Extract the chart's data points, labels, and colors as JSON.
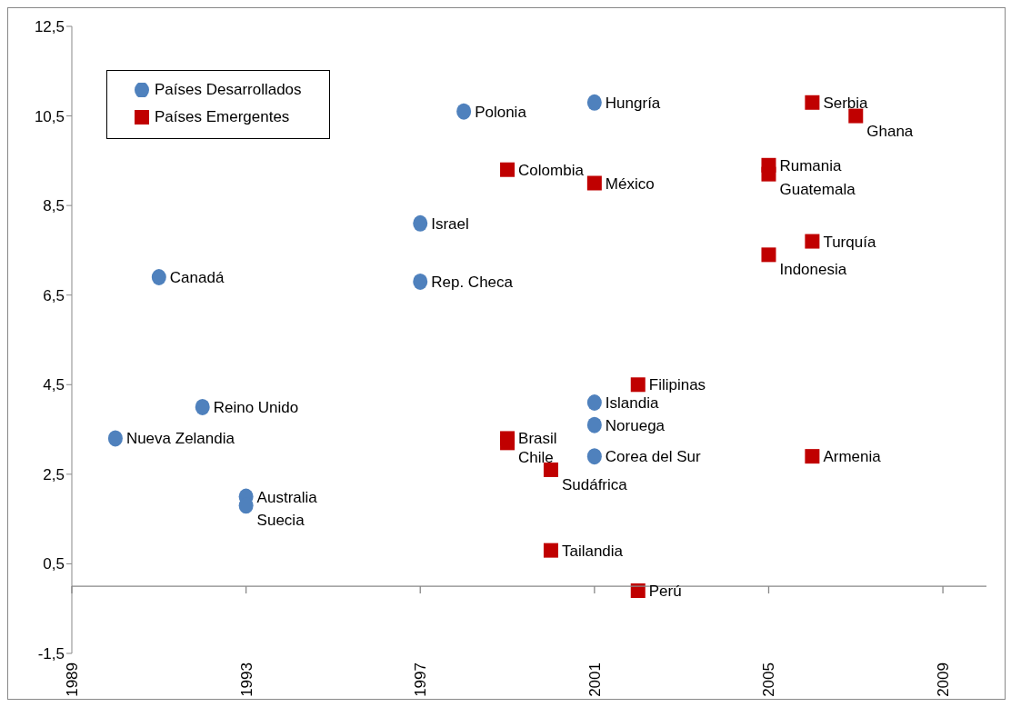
{
  "chart_data": {
    "type": "scatter",
    "xlim": [
      1989,
      2010
    ],
    "xticks": [
      1989,
      1993,
      1997,
      2001,
      2005,
      2009
    ],
    "ylim": [
      -1.5,
      12.5
    ],
    "yticks": [
      {
        "value": -1.5,
        "label": "-1,5"
      },
      {
        "value": 0.5,
        "label": "0,5"
      },
      {
        "value": 2.5,
        "label": "2,5"
      },
      {
        "value": 4.5,
        "label": "4,5"
      },
      {
        "value": 6.5,
        "label": "6,5"
      },
      {
        "value": 8.5,
        "label": "8,5"
      },
      {
        "value": 10.5,
        "label": "10,5"
      },
      {
        "value": 12.5,
        "label": "12,5"
      }
    ],
    "grid": false,
    "legend": "top left",
    "series": [
      {
        "name": "Países Desarrollados",
        "color": "#4f81bd",
        "marker": "circle",
        "x": [
          1990,
          1991,
          1992,
          1993,
          1993,
          1997,
          1997,
          1998,
          2001,
          2001,
          2001,
          2001
        ],
        "values": [
          3.3,
          6.9,
          4.0,
          2.0,
          1.8,
          8.1,
          6.8,
          10.6,
          10.8,
          4.1,
          3.6,
          2.9
        ]
      },
      {
        "name": "Países Emergentes",
        "color": "#c00000",
        "marker": "square",
        "x": [
          2006,
          2007,
          1999,
          2001,
          2005,
          2005,
          2006,
          2005,
          2002,
          1999,
          1999,
          2000,
          2000,
          2002,
          2006
        ],
        "values": [
          10.8,
          10.5,
          9.3,
          9.0,
          9.4,
          9.2,
          7.7,
          7.4,
          4.5,
          3.3,
          3.2,
          2.6,
          0.8,
          -0.1,
          2.9
        ]
      }
    ],
    "annotations": [
      {
        "text": "Nueva Zelandia",
        "x": 1990,
        "y": 3.3
      },
      {
        "text": "Canadá",
        "x": 1991,
        "y": 6.9
      },
      {
        "text": "Reino Unido",
        "x": 1992,
        "y": 4.0
      },
      {
        "text": "Australia",
        "x": 1993,
        "y": 2.0
      },
      {
        "text": "Suecia",
        "x": 1993,
        "y": 1.8
      },
      {
        "text": "Israel",
        "x": 1997,
        "y": 8.1
      },
      {
        "text": "Rep. Checa",
        "x": 1997,
        "y": 6.8
      },
      {
        "text": "Polonia",
        "x": 1998,
        "y": 10.6
      },
      {
        "text": "Hungría",
        "x": 2001,
        "y": 10.8
      },
      {
        "text": "Islandia",
        "x": 2001,
        "y": 4.1
      },
      {
        "text": "Noruega",
        "x": 2001,
        "y": 3.6
      },
      {
        "text": "Corea del Sur",
        "x": 2001,
        "y": 2.9
      },
      {
        "text": "Serbia",
        "x": 2006,
        "y": 10.8
      },
      {
        "text": "Ghana",
        "x": 2007,
        "y": 10.5
      },
      {
        "text": "Colombia",
        "x": 1999,
        "y": 9.3
      },
      {
        "text": "México",
        "x": 2001,
        "y": 9.0
      },
      {
        "text": "Rumania",
        "x": 2005,
        "y": 9.4
      },
      {
        "text": "Guatemala",
        "x": 2005,
        "y": 9.2
      },
      {
        "text": "Turquía",
        "x": 2006,
        "y": 7.7
      },
      {
        "text": "Indonesia",
        "x": 2005,
        "y": 7.4
      },
      {
        "text": "Filipinas",
        "x": 2002,
        "y": 4.5
      },
      {
        "text": "Brasil",
        "x": 1999,
        "y": 3.3
      },
      {
        "text": "Chile",
        "x": 1999,
        "y": 3.2
      },
      {
        "text": "Sudáfrica",
        "x": 2000,
        "y": 2.6
      },
      {
        "text": "Tailandia",
        "x": 2000,
        "y": 0.8
      },
      {
        "text": "Perú",
        "x": 2002,
        "y": -0.1
      },
      {
        "text": "Armenia",
        "x": 2006,
        "y": 2.9
      }
    ]
  }
}
